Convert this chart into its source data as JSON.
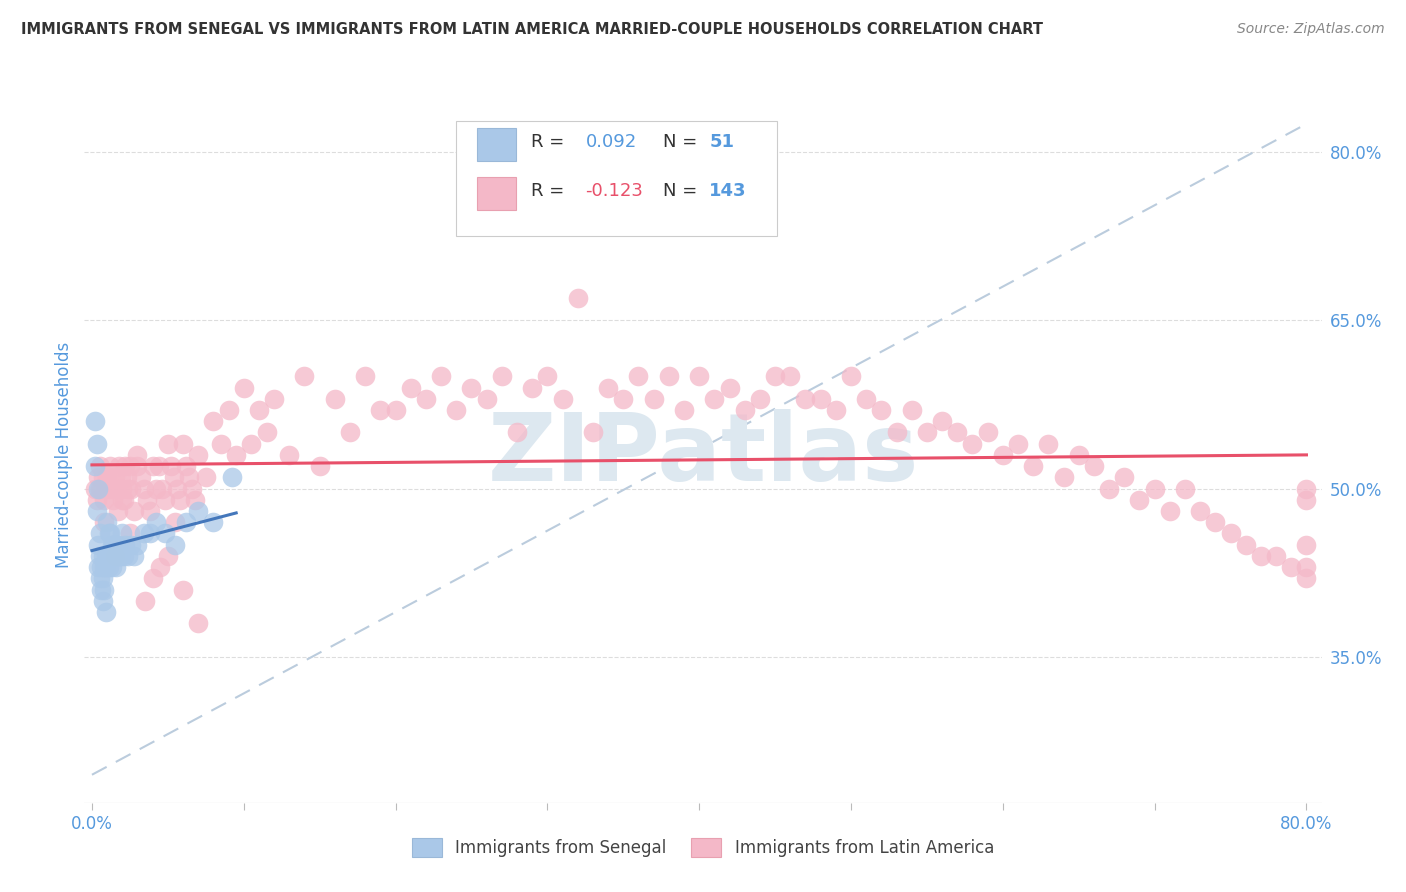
{
  "title": "IMMIGRANTS FROM SENEGAL VS IMMIGRANTS FROM LATIN AMERICA MARRIED-COUPLE HOUSEHOLDS CORRELATION CHART",
  "source": "Source: ZipAtlas.com",
  "ylabel": "Married-couple Households",
  "x_tick_values": [
    0.0,
    0.1,
    0.2,
    0.3,
    0.4,
    0.5,
    0.6,
    0.7,
    0.8
  ],
  "y_tick_labels": [
    "80.0%",
    "65.0%",
    "50.0%",
    "35.0%"
  ],
  "y_tick_values": [
    0.8,
    0.65,
    0.5,
    0.35
  ],
  "xlim": [
    -0.005,
    0.81
  ],
  "ylim": [
    0.22,
    0.84
  ],
  "legend_R1": "R = 0.092",
  "legend_N1": "N =  51",
  "legend_R2": "R = -0.123",
  "legend_N2": "N = 143",
  "blue_color": "#aac8e8",
  "pink_color": "#f4b8c8",
  "blue_line_color": "#4477bb",
  "pink_line_color": "#e8506a",
  "diagonal_color": "#bbccdd",
  "watermark_color": "#dde8f0",
  "title_color": "#333333",
  "tick_label_color": "#5599dd",
  "grid_color": "#dddddd",
  "senegal_x": [
    0.002,
    0.002,
    0.003,
    0.003,
    0.004,
    0.004,
    0.004,
    0.005,
    0.005,
    0.005,
    0.006,
    0.006,
    0.007,
    0.007,
    0.007,
    0.008,
    0.008,
    0.009,
    0.009,
    0.009,
    0.01,
    0.01,
    0.011,
    0.011,
    0.012,
    0.012,
    0.013,
    0.013,
    0.014,
    0.015,
    0.016,
    0.016,
    0.017,
    0.018,
    0.019,
    0.02,
    0.021,
    0.022,
    0.024,
    0.026,
    0.028,
    0.03,
    0.034,
    0.038,
    0.042,
    0.048,
    0.055,
    0.062,
    0.07,
    0.08,
    0.092
  ],
  "senegal_y": [
    0.56,
    0.52,
    0.54,
    0.48,
    0.5,
    0.45,
    0.43,
    0.44,
    0.42,
    0.46,
    0.43,
    0.41,
    0.44,
    0.42,
    0.4,
    0.43,
    0.41,
    0.44,
    0.43,
    0.39,
    0.47,
    0.44,
    0.46,
    0.43,
    0.46,
    0.44,
    0.45,
    0.43,
    0.45,
    0.44,
    0.45,
    0.43,
    0.45,
    0.44,
    0.44,
    0.46,
    0.44,
    0.45,
    0.44,
    0.45,
    0.44,
    0.45,
    0.46,
    0.46,
    0.47,
    0.46,
    0.45,
    0.47,
    0.48,
    0.47,
    0.51
  ],
  "latin_x": [
    0.002,
    0.003,
    0.004,
    0.005,
    0.006,
    0.007,
    0.008,
    0.009,
    0.01,
    0.011,
    0.012,
    0.013,
    0.014,
    0.015,
    0.016,
    0.017,
    0.018,
    0.019,
    0.02,
    0.021,
    0.022,
    0.023,
    0.024,
    0.025,
    0.026,
    0.028,
    0.03,
    0.032,
    0.034,
    0.036,
    0.038,
    0.04,
    0.042,
    0.044,
    0.046,
    0.048,
    0.05,
    0.052,
    0.054,
    0.056,
    0.058,
    0.06,
    0.062,
    0.064,
    0.066,
    0.068,
    0.07,
    0.075,
    0.08,
    0.085,
    0.09,
    0.095,
    0.1,
    0.105,
    0.11,
    0.115,
    0.12,
    0.13,
    0.14,
    0.15,
    0.16,
    0.17,
    0.18,
    0.19,
    0.2,
    0.21,
    0.22,
    0.23,
    0.24,
    0.25,
    0.26,
    0.27,
    0.28,
    0.29,
    0.3,
    0.31,
    0.32,
    0.33,
    0.34,
    0.35,
    0.36,
    0.37,
    0.38,
    0.39,
    0.4,
    0.41,
    0.42,
    0.43,
    0.44,
    0.45,
    0.46,
    0.47,
    0.48,
    0.49,
    0.5,
    0.51,
    0.52,
    0.53,
    0.54,
    0.55,
    0.56,
    0.57,
    0.58,
    0.59,
    0.6,
    0.61,
    0.62,
    0.63,
    0.64,
    0.65,
    0.66,
    0.67,
    0.68,
    0.69,
    0.7,
    0.71,
    0.72,
    0.73,
    0.74,
    0.75,
    0.76,
    0.77,
    0.78,
    0.79,
    0.8,
    0.8,
    0.8,
    0.8,
    0.8,
    0.005,
    0.01,
    0.02,
    0.03,
    0.05,
    0.008,
    0.015,
    0.025,
    0.04,
    0.06,
    0.07,
    0.035,
    0.045,
    0.055
  ],
  "latin_y": [
    0.5,
    0.49,
    0.51,
    0.52,
    0.5,
    0.51,
    0.49,
    0.5,
    0.51,
    0.5,
    0.52,
    0.5,
    0.49,
    0.51,
    0.5,
    0.48,
    0.52,
    0.51,
    0.5,
    0.49,
    0.52,
    0.51,
    0.5,
    0.52,
    0.5,
    0.48,
    0.52,
    0.51,
    0.5,
    0.49,
    0.48,
    0.52,
    0.5,
    0.52,
    0.5,
    0.49,
    0.54,
    0.52,
    0.51,
    0.5,
    0.49,
    0.54,
    0.52,
    0.51,
    0.5,
    0.49,
    0.53,
    0.51,
    0.56,
    0.54,
    0.57,
    0.53,
    0.59,
    0.54,
    0.57,
    0.55,
    0.58,
    0.53,
    0.6,
    0.52,
    0.58,
    0.55,
    0.6,
    0.57,
    0.57,
    0.59,
    0.58,
    0.6,
    0.57,
    0.59,
    0.58,
    0.6,
    0.55,
    0.59,
    0.6,
    0.58,
    0.67,
    0.55,
    0.59,
    0.58,
    0.6,
    0.58,
    0.6,
    0.57,
    0.6,
    0.58,
    0.59,
    0.57,
    0.58,
    0.6,
    0.6,
    0.58,
    0.58,
    0.57,
    0.6,
    0.58,
    0.57,
    0.55,
    0.57,
    0.55,
    0.56,
    0.55,
    0.54,
    0.55,
    0.53,
    0.54,
    0.52,
    0.54,
    0.51,
    0.53,
    0.52,
    0.5,
    0.51,
    0.49,
    0.5,
    0.48,
    0.5,
    0.48,
    0.47,
    0.46,
    0.45,
    0.44,
    0.44,
    0.43,
    0.43,
    0.42,
    0.5,
    0.49,
    0.45,
    0.5,
    0.51,
    0.49,
    0.53,
    0.44,
    0.47,
    0.44,
    0.46,
    0.42,
    0.41,
    0.38,
    0.4,
    0.43,
    0.47
  ]
}
